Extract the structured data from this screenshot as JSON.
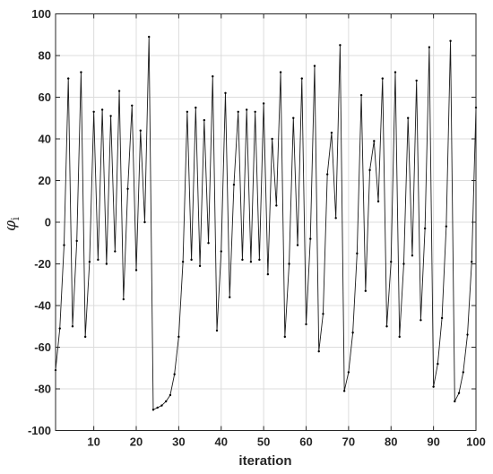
{
  "chart_data": {
    "type": "line",
    "xlabel": "iteration",
    "ylabel": "φ",
    "ylabel_subscript": "i",
    "xlim": [
      1,
      100
    ],
    "ylim": [
      -100,
      100
    ],
    "xticks": [
      10,
      20,
      30,
      40,
      50,
      60,
      70,
      80,
      90,
      100
    ],
    "yticks": [
      -100,
      -80,
      -60,
      -40,
      -20,
      0,
      20,
      40,
      60,
      80,
      100
    ],
    "grid": true,
    "line_color": "#1a1a1a",
    "marker_color": "#000000",
    "series": [
      {
        "x": [
          1,
          2,
          3,
          4,
          5,
          6,
          7,
          8,
          9,
          10,
          11,
          12,
          13,
          14,
          15,
          16,
          17,
          18,
          19,
          20,
          21,
          22,
          23,
          24,
          25,
          26,
          27,
          28,
          29,
          30,
          31,
          32,
          33,
          34,
          35,
          36,
          37,
          38,
          39,
          40,
          41,
          42,
          43,
          44,
          45,
          46,
          47,
          48,
          49,
          50,
          51,
          52,
          53,
          54,
          55,
          56,
          57,
          58,
          59,
          60,
          61,
          62,
          63,
          64,
          65,
          66,
          67,
          68,
          69,
          70,
          71,
          72,
          73,
          74,
          75,
          76,
          77,
          78,
          79,
          80,
          81,
          82,
          83,
          84,
          85,
          86,
          87,
          88,
          89,
          90,
          91,
          92,
          93,
          94,
          95,
          96,
          97,
          98,
          99,
          100
        ],
        "values": [
          -71,
          -51,
          -11,
          69,
          -50,
          -9,
          72,
          -55,
          -19,
          53,
          -18,
          54,
          -20,
          51,
          -14,
          63,
          -37,
          16,
          56,
          -23,
          44,
          0,
          89,
          -90,
          -89,
          -88,
          -86,
          -83,
          -73,
          -55,
          -19,
          53,
          -18,
          55,
          -21,
          49,
          -10,
          70,
          -52,
          -14,
          62,
          -36,
          18,
          53,
          -18,
          54,
          -19,
          53,
          -18,
          57,
          -25,
          40,
          8,
          72,
          -55,
          -20,
          50,
          -11,
          69,
          -49,
          -8,
          75,
          -62,
          -44,
          23,
          43,
          2,
          85,
          -81,
          -72,
          -53,
          -15,
          61,
          -33,
          25,
          39,
          10,
          69,
          -50,
          -19,
          72,
          -55,
          -20,
          50,
          -16,
          68,
          -47,
          -3,
          84,
          -79,
          -68,
          -46,
          -2,
          87,
          -86,
          -82,
          -72,
          -54,
          -19,
          55
        ]
      }
    ]
  }
}
